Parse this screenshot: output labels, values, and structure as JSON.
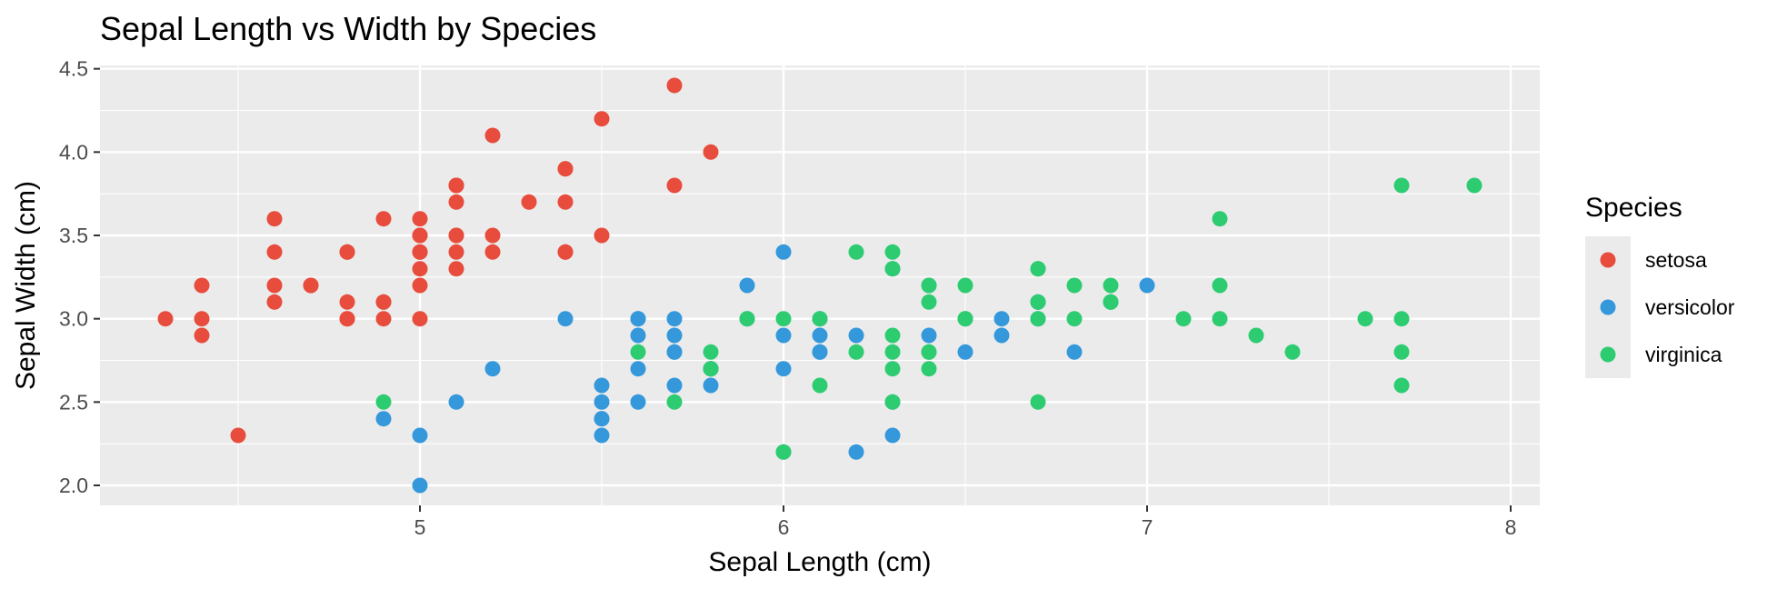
{
  "chart_data": {
    "type": "scatter",
    "title": "Sepal Length vs Width by Species",
    "xlabel": "Sepal Length (cm)",
    "ylabel": "Sepal Width (cm)",
    "xlim": [
      4.12,
      8.08
    ],
    "ylim": [
      1.88,
      4.52
    ],
    "x_ticks": [
      5,
      6,
      7,
      8
    ],
    "y_ticks": [
      2.0,
      2.5,
      3.0,
      3.5,
      4.0,
      4.5
    ],
    "x_tick_labels": [
      "5",
      "6",
      "7",
      "8"
    ],
    "y_tick_labels": [
      "2.0",
      "2.5",
      "3.0",
      "3.5",
      "4.0",
      "4.5"
    ],
    "grid": true,
    "legend": {
      "title": "Species",
      "position": "right"
    },
    "colors": {
      "panel": "#EBEBEB",
      "grid": "#FFFFFF"
    },
    "series": [
      {
        "name": "setosa",
        "color": "#E74C3C",
        "points": [
          [
            5.1,
            3.5
          ],
          [
            4.9,
            3.0
          ],
          [
            4.7,
            3.2
          ],
          [
            4.6,
            3.1
          ],
          [
            5.0,
            3.6
          ],
          [
            5.4,
            3.9
          ],
          [
            4.6,
            3.4
          ],
          [
            5.0,
            3.4
          ],
          [
            4.4,
            2.9
          ],
          [
            4.9,
            3.1
          ],
          [
            5.4,
            3.7
          ],
          [
            4.8,
            3.4
          ],
          [
            4.8,
            3.0
          ],
          [
            4.3,
            3.0
          ],
          [
            5.8,
            4.0
          ],
          [
            5.7,
            4.4
          ],
          [
            5.4,
            3.9
          ],
          [
            5.1,
            3.5
          ],
          [
            5.7,
            3.8
          ],
          [
            5.1,
            3.8
          ],
          [
            5.4,
            3.4
          ],
          [
            5.1,
            3.7
          ],
          [
            4.6,
            3.6
          ],
          [
            5.1,
            3.3
          ],
          [
            4.8,
            3.4
          ],
          [
            5.0,
            3.0
          ],
          [
            5.0,
            3.4
          ],
          [
            5.2,
            3.5
          ],
          [
            5.2,
            3.4
          ],
          [
            4.7,
            3.2
          ],
          [
            4.8,
            3.1
          ],
          [
            5.4,
            3.4
          ],
          [
            5.2,
            4.1
          ],
          [
            5.5,
            4.2
          ],
          [
            4.9,
            3.1
          ],
          [
            5.0,
            3.2
          ],
          [
            5.5,
            3.5
          ],
          [
            4.9,
            3.6
          ],
          [
            4.4,
            3.0
          ],
          [
            5.1,
            3.4
          ],
          [
            5.0,
            3.5
          ],
          [
            4.5,
            2.3
          ],
          [
            4.4,
            3.2
          ],
          [
            5.0,
            3.5
          ],
          [
            5.1,
            3.8
          ],
          [
            4.8,
            3.0
          ],
          [
            5.1,
            3.8
          ],
          [
            4.6,
            3.2
          ],
          [
            5.3,
            3.7
          ],
          [
            5.0,
            3.3
          ]
        ]
      },
      {
        "name": "versicolor",
        "color": "#3498DB",
        "points": [
          [
            7.0,
            3.2
          ],
          [
            6.4,
            3.2
          ],
          [
            6.9,
            3.1
          ],
          [
            5.5,
            2.3
          ],
          [
            6.5,
            2.8
          ],
          [
            5.7,
            2.8
          ],
          [
            6.3,
            3.3
          ],
          [
            4.9,
            2.4
          ],
          [
            6.6,
            2.9
          ],
          [
            5.2,
            2.7
          ],
          [
            5.0,
            2.0
          ],
          [
            5.9,
            3.0
          ],
          [
            6.0,
            2.2
          ],
          [
            6.1,
            2.9
          ],
          [
            5.6,
            2.9
          ],
          [
            6.7,
            3.1
          ],
          [
            5.6,
            3.0
          ],
          [
            5.8,
            2.7
          ],
          [
            6.2,
            2.2
          ],
          [
            5.6,
            2.5
          ],
          [
            5.9,
            3.2
          ],
          [
            6.1,
            2.8
          ],
          [
            6.3,
            2.5
          ],
          [
            6.1,
            2.8
          ],
          [
            6.4,
            2.9
          ],
          [
            6.6,
            3.0
          ],
          [
            6.8,
            2.8
          ],
          [
            6.7,
            3.0
          ],
          [
            6.0,
            2.9
          ],
          [
            5.7,
            2.6
          ],
          [
            5.5,
            2.4
          ],
          [
            5.5,
            2.4
          ],
          [
            5.8,
            2.7
          ],
          [
            6.0,
            2.7
          ],
          [
            5.4,
            3.0
          ],
          [
            6.0,
            3.4
          ],
          [
            6.7,
            3.1
          ],
          [
            6.3,
            2.3
          ],
          [
            5.6,
            3.0
          ],
          [
            5.5,
            2.5
          ],
          [
            5.5,
            2.6
          ],
          [
            6.1,
            3.0
          ],
          [
            5.8,
            2.6
          ],
          [
            5.0,
            2.3
          ],
          [
            5.6,
            2.7
          ],
          [
            5.7,
            3.0
          ],
          [
            5.7,
            2.9
          ],
          [
            6.2,
            2.9
          ],
          [
            5.1,
            2.5
          ],
          [
            5.7,
            2.8
          ]
        ]
      },
      {
        "name": "virginica",
        "color": "#2ECC71",
        "points": [
          [
            6.3,
            3.3
          ],
          [
            5.8,
            2.7
          ],
          [
            7.1,
            3.0
          ],
          [
            6.3,
            2.9
          ],
          [
            6.5,
            3.0
          ],
          [
            7.6,
            3.0
          ],
          [
            4.9,
            2.5
          ],
          [
            7.3,
            2.9
          ],
          [
            6.7,
            2.5
          ],
          [
            7.2,
            3.6
          ],
          [
            6.5,
            3.2
          ],
          [
            6.4,
            2.7
          ],
          [
            6.8,
            3.0
          ],
          [
            5.7,
            2.5
          ],
          [
            5.8,
            2.8
          ],
          [
            6.4,
            3.2
          ],
          [
            6.5,
            3.0
          ],
          [
            7.7,
            3.8
          ],
          [
            7.7,
            2.6
          ],
          [
            6.0,
            2.2
          ],
          [
            6.9,
            3.2
          ],
          [
            5.6,
            2.8
          ],
          [
            7.7,
            2.8
          ],
          [
            6.3,
            2.7
          ],
          [
            6.7,
            3.3
          ],
          [
            7.2,
            3.2
          ],
          [
            6.2,
            2.8
          ],
          [
            6.1,
            3.0
          ],
          [
            6.4,
            2.8
          ],
          [
            7.2,
            3.0
          ],
          [
            7.4,
            2.8
          ],
          [
            7.9,
            3.8
          ],
          [
            6.4,
            2.8
          ],
          [
            6.3,
            2.8
          ],
          [
            6.1,
            2.6
          ],
          [
            7.7,
            3.0
          ],
          [
            6.3,
            3.4
          ],
          [
            6.4,
            3.1
          ],
          [
            6.0,
            3.0
          ],
          [
            6.9,
            3.1
          ],
          [
            6.7,
            3.1
          ],
          [
            6.9,
            3.1
          ],
          [
            5.8,
            2.7
          ],
          [
            6.8,
            3.2
          ],
          [
            6.7,
            3.3
          ],
          [
            6.7,
            3.0
          ],
          [
            6.3,
            2.5
          ],
          [
            6.5,
            3.0
          ],
          [
            6.2,
            3.4
          ],
          [
            5.9,
            3.0
          ]
        ]
      }
    ]
  }
}
